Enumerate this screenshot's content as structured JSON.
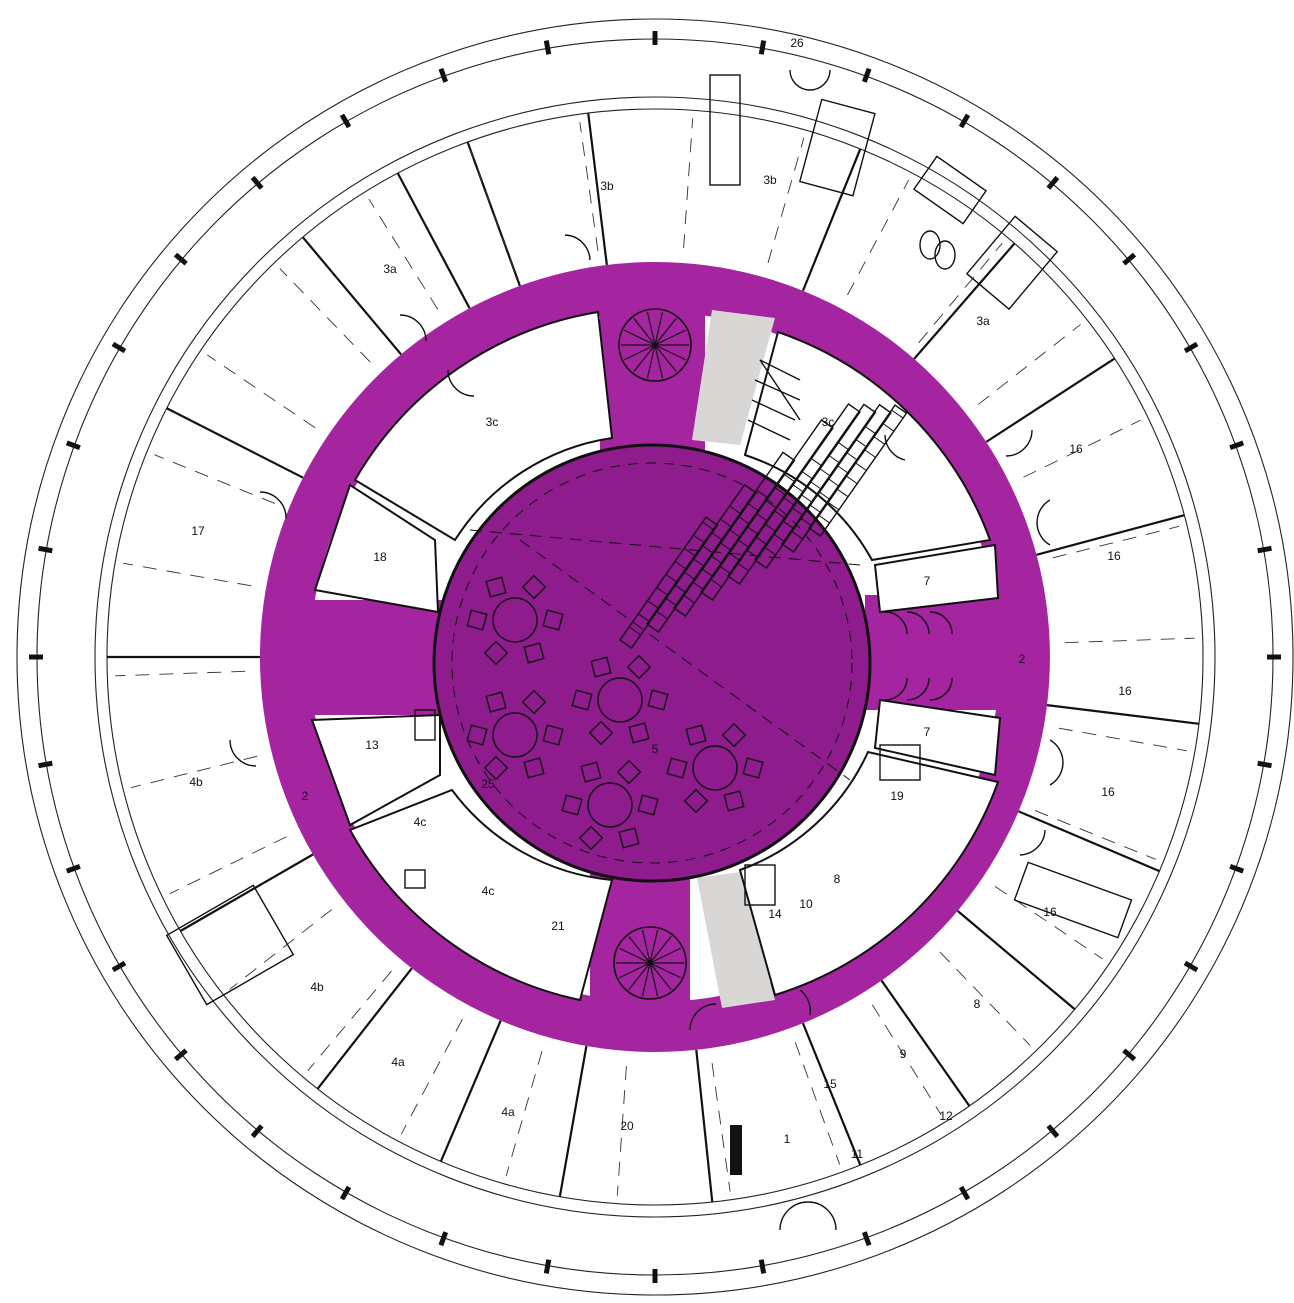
{
  "colors": {
    "background": "#ffffff",
    "line": "#111111",
    "corridor": "#a5249f",
    "hall": "#8e1c8c",
    "stair_light": "#d9d6d6"
  },
  "labels": {
    "r1": "1",
    "r2_right": "2",
    "r2_left": "2",
    "r3a_left": "3a",
    "r3a_right": "3a",
    "r3b_left": "3b",
    "r3b_right": "3b",
    "r3c_left": "3c",
    "r3c_right": "3c",
    "r4a_left": "4a",
    "r4a_right": "4a",
    "r4b_upper": "4b",
    "r4b_lower": "4b",
    "r4c_upper": "4c",
    "r4c_lower": "4c",
    "r5": "5",
    "r7_upper": "7",
    "r7_lower": "7",
    "r8_upper": "8",
    "r8_lower": "8",
    "r9": "9",
    "r10": "10",
    "r11": "11",
    "r12": "12",
    "r13": "13",
    "r14": "14",
    "r15": "15",
    "r16_a": "16",
    "r16_b": "16",
    "r16_c": "16",
    "r16_d": "16",
    "r16_e": "16",
    "r17": "17",
    "r18": "18",
    "r19": "19",
    "r20": "20",
    "r21": "21",
    "r25": "25",
    "r26": "26"
  }
}
